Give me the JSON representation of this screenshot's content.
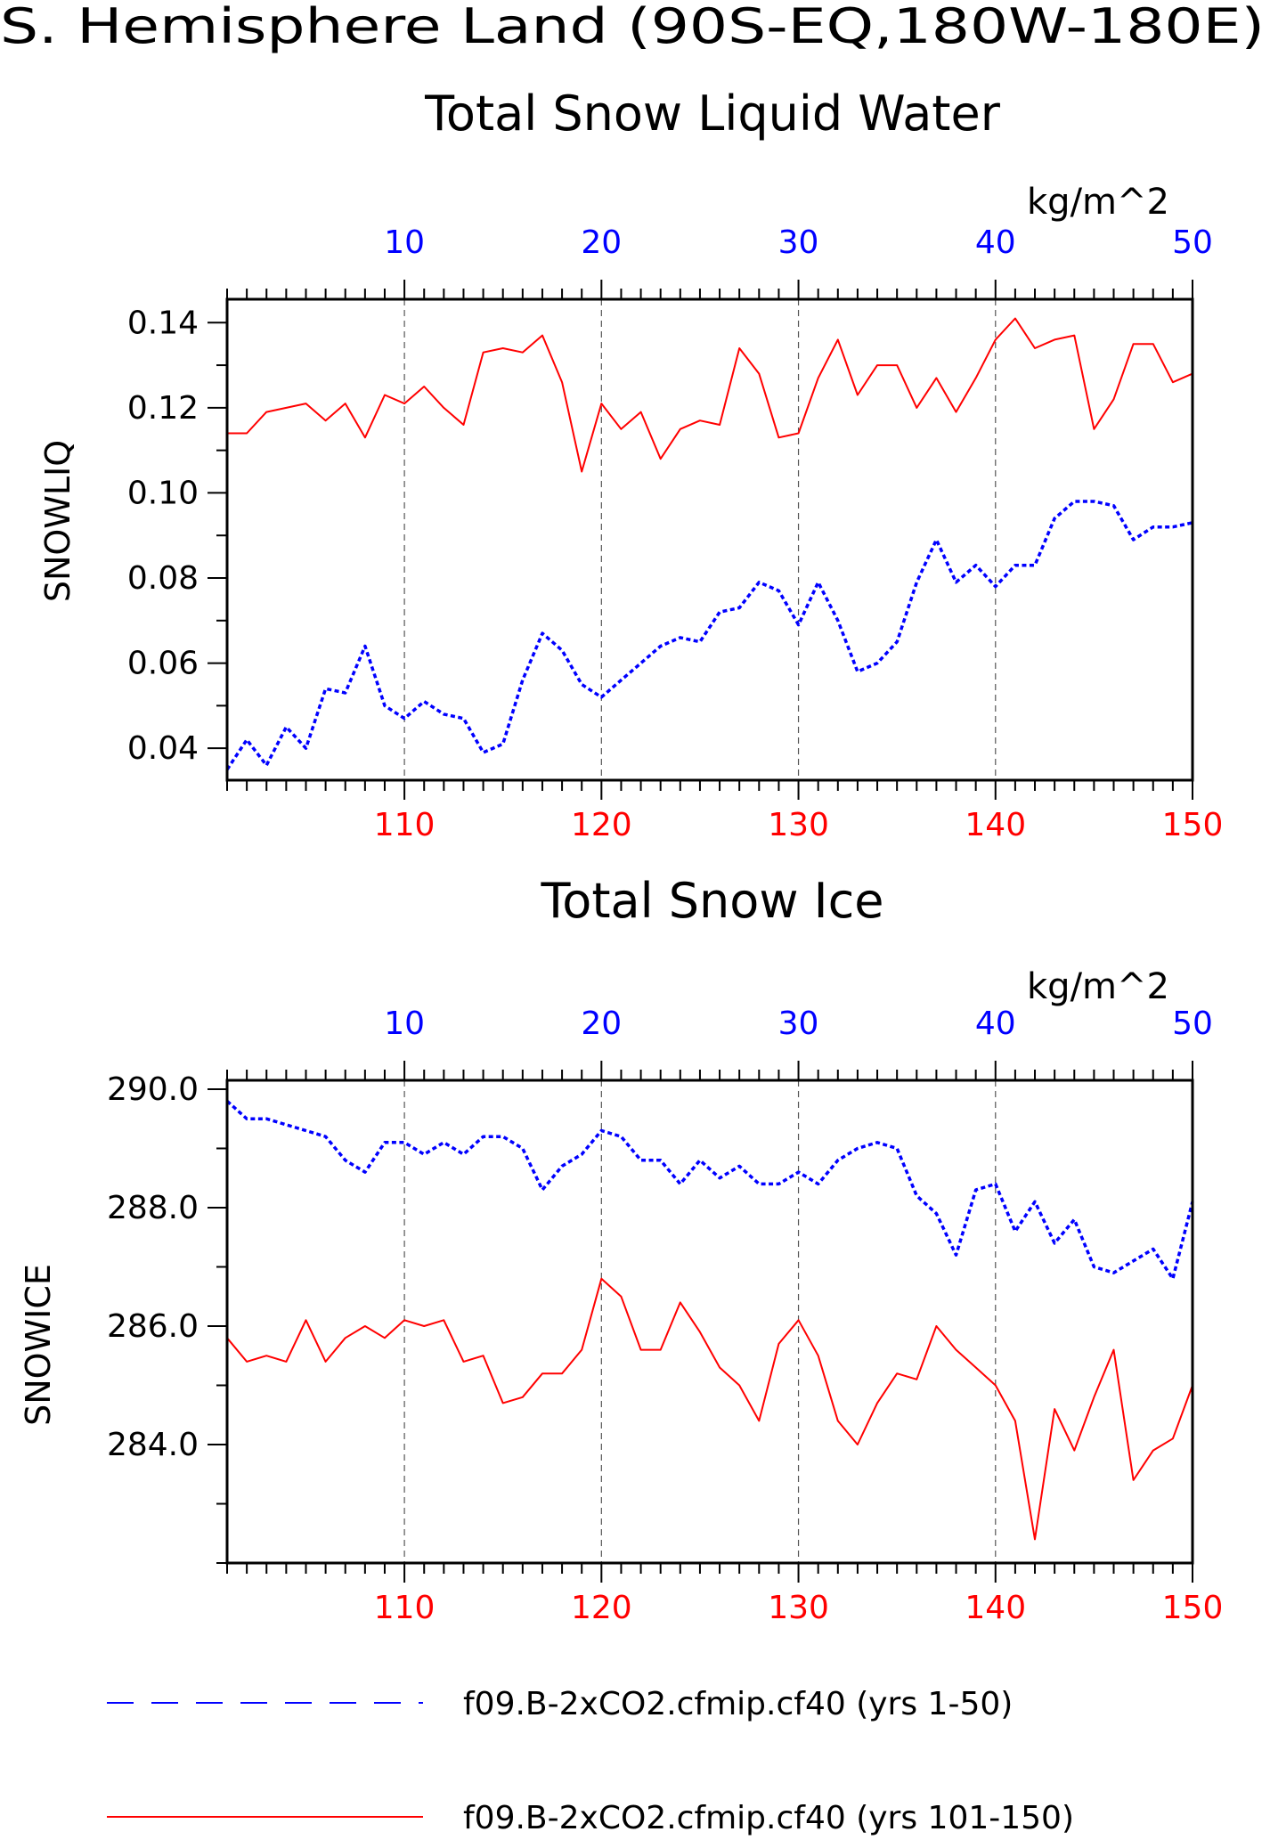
{
  "page": {
    "title": "S. Hemisphere Land (90S-EQ,180W-180E)"
  },
  "colors": {
    "series1": "#0000ff",
    "series2": "#ff0000",
    "axis": "#000000",
    "grid": "#555555"
  },
  "legend": {
    "position": "bottom",
    "entries": [
      {
        "label": "f09.B-2xCO2.cfmip.cf40 (yrs 1-50)",
        "color": "#0000ff",
        "style": "dashed"
      },
      {
        "label": "f09.B-2xCO2.cfmip.cf40 (yrs 101-150)",
        "color": "#ff0000",
        "style": "solid"
      }
    ]
  },
  "chart_data": [
    {
      "type": "line",
      "title": "Total Snow Liquid Water",
      "units": "kg/m^2",
      "ylabel": "SNOWLIQ",
      "ylim": [
        0.0325,
        0.1455
      ],
      "yticks": [
        0.04,
        0.06,
        0.08,
        0.1,
        0.12,
        0.14
      ],
      "ytick_labels": [
        "0.04",
        "0.06",
        "0.08",
        "0.10",
        "0.12",
        "0.14"
      ],
      "xlim_bottom": [
        101,
        150
      ],
      "xticks_bottom": [
        "110",
        "120",
        "130",
        "140",
        "150"
      ],
      "xlim_top": [
        1,
        50
      ],
      "xticks_top": [
        "10",
        "20",
        "30",
        "40",
        "50"
      ],
      "grid": "vertical dashed at major ticks",
      "series": [
        {
          "name": "f09.B-2xCO2.cfmip.cf40 (yrs 1-50)",
          "axis": "top",
          "style": "dashed",
          "x": [
            1,
            2,
            3,
            4,
            5,
            6,
            7,
            8,
            9,
            10,
            11,
            12,
            13,
            14,
            15,
            16,
            17,
            18,
            19,
            20,
            21,
            22,
            23,
            24,
            25,
            26,
            27,
            28,
            29,
            30,
            31,
            32,
            33,
            34,
            35,
            36,
            37,
            38,
            39,
            40,
            41,
            42,
            43,
            44,
            45,
            46,
            47,
            48,
            49,
            50
          ],
          "values": [
            0.035,
            0.042,
            0.036,
            0.045,
            0.04,
            0.054,
            0.053,
            0.064,
            0.05,
            0.047,
            0.051,
            0.048,
            0.047,
            0.039,
            0.041,
            0.056,
            0.067,
            0.063,
            0.055,
            0.052,
            0.056,
            0.06,
            0.064,
            0.066,
            0.065,
            0.072,
            0.073,
            0.079,
            0.077,
            0.069,
            0.079,
            0.07,
            0.058,
            0.06,
            0.065,
            0.079,
            0.089,
            0.079,
            0.083,
            0.078,
            0.083,
            0.083,
            0.094,
            0.098,
            0.098,
            0.097,
            0.089,
            0.092,
            0.092,
            0.093
          ]
        },
        {
          "name": "f09.B-2xCO2.cfmip.cf40 (yrs 101-150)",
          "axis": "bottom",
          "style": "solid",
          "x": [
            101,
            102,
            103,
            104,
            105,
            106,
            107,
            108,
            109,
            110,
            111,
            112,
            113,
            114,
            115,
            116,
            117,
            118,
            119,
            120,
            121,
            122,
            123,
            124,
            125,
            126,
            127,
            128,
            129,
            130,
            131,
            132,
            133,
            134,
            135,
            136,
            137,
            138,
            139,
            140,
            141,
            142,
            143,
            144,
            145,
            146,
            147,
            148,
            149,
            150
          ],
          "values": [
            0.114,
            0.114,
            0.119,
            0.12,
            0.121,
            0.117,
            0.121,
            0.113,
            0.123,
            0.121,
            0.125,
            0.12,
            0.116,
            0.133,
            0.134,
            0.133,
            0.137,
            0.126,
            0.105,
            0.121,
            0.115,
            0.119,
            0.108,
            0.115,
            0.117,
            0.116,
            0.134,
            0.128,
            0.113,
            0.114,
            0.127,
            0.136,
            0.123,
            0.13,
            0.13,
            0.12,
            0.127,
            0.119,
            0.127,
            0.136,
            0.141,
            0.134,
            0.136,
            0.137,
            0.115,
            0.122,
            0.135,
            0.135,
            0.126,
            0.128
          ]
        }
      ]
    },
    {
      "type": "line",
      "title": "Total Snow Ice",
      "units": "kg/m^2",
      "ylabel": "SNOWICE",
      "ylim": [
        282.0,
        290.15
      ],
      "yticks": [
        284.0,
        286.0,
        288.0,
        290.0
      ],
      "ytick_labels": [
        "284.0",
        "286.0",
        "288.0",
        "290.0"
      ],
      "xlim_bottom": [
        101,
        150
      ],
      "xticks_bottom": [
        "110",
        "120",
        "130",
        "140",
        "150"
      ],
      "xlim_top": [
        1,
        50
      ],
      "xticks_top": [
        "10",
        "20",
        "30",
        "40",
        "50"
      ],
      "grid": "vertical dashed at major ticks",
      "series": [
        {
          "name": "f09.B-2xCO2.cfmip.cf40 (yrs 1-50)",
          "axis": "top",
          "style": "dashed",
          "x": [
            1,
            2,
            3,
            4,
            5,
            6,
            7,
            8,
            9,
            10,
            11,
            12,
            13,
            14,
            15,
            16,
            17,
            18,
            19,
            20,
            21,
            22,
            23,
            24,
            25,
            26,
            27,
            28,
            29,
            30,
            31,
            32,
            33,
            34,
            35,
            36,
            37,
            38,
            39,
            40,
            41,
            42,
            43,
            44,
            45,
            46,
            47,
            48,
            49,
            50
          ],
          "values": [
            289.8,
            289.5,
            289.5,
            289.4,
            289.3,
            289.2,
            288.8,
            288.6,
            289.1,
            289.1,
            288.9,
            289.1,
            288.9,
            289.2,
            289.2,
            289.0,
            288.3,
            288.7,
            288.9,
            289.3,
            289.2,
            288.8,
            288.8,
            288.4,
            288.8,
            288.5,
            288.7,
            288.4,
            288.4,
            288.6,
            288.4,
            288.8,
            289.0,
            289.1,
            289.0,
            288.2,
            287.9,
            287.2,
            288.3,
            288.4,
            287.6,
            288.1,
            287.4,
            287.8,
            287.0,
            286.9,
            287.1,
            287.3,
            286.8,
            288.1
          ]
        },
        {
          "name": "f09.B-2xCO2.cfmip.cf40 (yrs 101-150)",
          "axis": "bottom",
          "style": "solid",
          "x": [
            101,
            102,
            103,
            104,
            105,
            106,
            107,
            108,
            109,
            110,
            111,
            112,
            113,
            114,
            115,
            116,
            117,
            118,
            119,
            120,
            121,
            122,
            123,
            124,
            125,
            126,
            127,
            128,
            129,
            130,
            131,
            132,
            133,
            134,
            135,
            136,
            137,
            138,
            139,
            140,
            141,
            142,
            143,
            144,
            145,
            146,
            147,
            148,
            149,
            150
          ],
          "values": [
            285.8,
            285.4,
            285.5,
            285.4,
            286.1,
            285.4,
            285.8,
            286.0,
            285.8,
            286.1,
            286.0,
            286.1,
            285.4,
            285.5,
            284.7,
            284.8,
            285.2,
            285.2,
            285.6,
            286.8,
            286.5,
            285.6,
            285.6,
            286.4,
            285.9,
            285.3,
            285.0,
            284.4,
            285.7,
            286.1,
            285.5,
            284.4,
            284.0,
            284.7,
            285.2,
            285.1,
            286.0,
            285.6,
            285.3,
            285.0,
            284.4,
            282.4,
            284.6,
            283.9,
            284.8,
            285.6,
            283.4,
            283.9,
            284.1,
            285.0
          ]
        }
      ]
    }
  ]
}
